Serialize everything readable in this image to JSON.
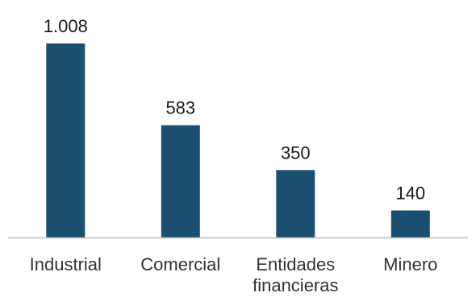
{
  "chart_data": {
    "type": "bar",
    "categories": [
      "Industrial",
      "Comercial",
      "Entidades financieras",
      "Minero"
    ],
    "category_lines": [
      [
        "Industrial"
      ],
      [
        "Comercial"
      ],
      [
        "Entidades",
        "financieras"
      ],
      [
        "Minero"
      ]
    ],
    "values": [
      1008,
      583,
      350,
      140
    ],
    "value_labels": [
      "1.008",
      "583",
      "350",
      "140"
    ],
    "title": "",
    "xlabel": "",
    "ylabel": "",
    "ylim": [
      0,
      1008
    ],
    "grid": false,
    "legend": "none",
    "bar_color": "#1a4f70",
    "axis_color": "#bfbfbf"
  }
}
